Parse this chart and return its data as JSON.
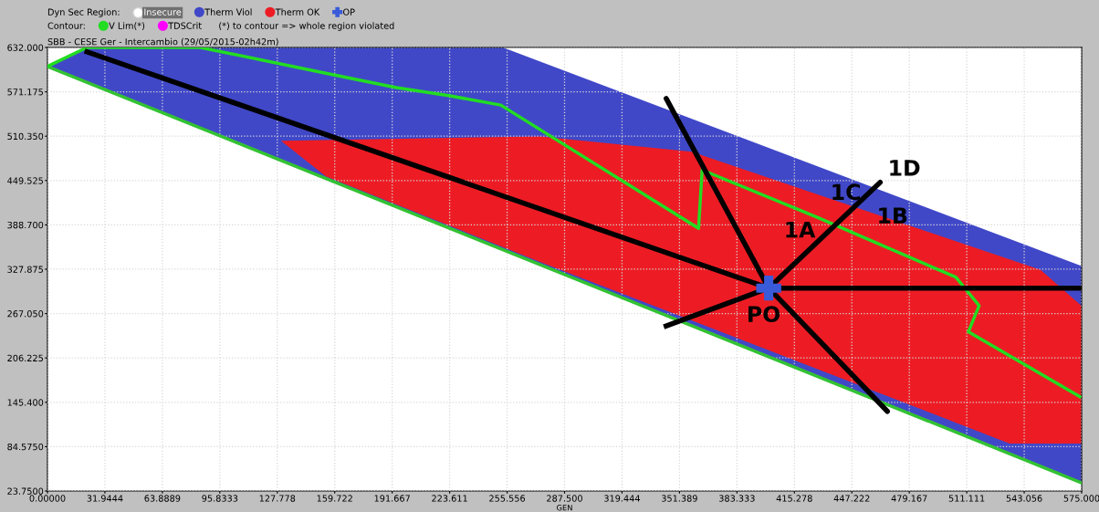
{
  "chart_data": {
    "type": "line",
    "title": "SBB - CESE Ger - Intercambio (29/05/2015-02h42m)",
    "xlabel": "GEN",
    "legend_title": "Dyn Sec Region:",
    "legend": "top left",
    "xlim": [
      0,
      575
    ],
    "ylim": [
      23.75,
      632
    ],
    "xticks": [
      {
        "value": 0,
        "label": "0.00000"
      },
      {
        "value": 31.9444,
        "label": "31.9444"
      },
      {
        "value": 63.8889,
        "label": "63.8889"
      },
      {
        "value": 95.8333,
        "label": "95.8333"
      },
      {
        "value": 127.778,
        "label": "127.778"
      },
      {
        "value": 159.722,
        "label": "159.722"
      },
      {
        "value": 191.667,
        "label": "191.667"
      },
      {
        "value": 223.611,
        "label": "223.611"
      },
      {
        "value": 255.556,
        "label": "255.556"
      },
      {
        "value": 287.5,
        "label": "287.500"
      },
      {
        "value": 319.444,
        "label": "319.444"
      },
      {
        "value": 351.389,
        "label": "351.389"
      },
      {
        "value": 383.333,
        "label": "383.333"
      },
      {
        "value": 415.278,
        "label": "415.278"
      },
      {
        "value": 447.222,
        "label": "447.222"
      },
      {
        "value": 479.167,
        "label": "479.167"
      },
      {
        "value": 511.111,
        "label": "511.111"
      },
      {
        "value": 543.056,
        "label": "543.056"
      },
      {
        "value": 575,
        "label": "575.000"
      }
    ],
    "yticks": [
      {
        "value": 23.75,
        "label": "23.7500"
      },
      {
        "value": 84.575,
        "label": "84.5750"
      },
      {
        "value": 145.4,
        "label": "145.400"
      },
      {
        "value": 206.225,
        "label": "206.225"
      },
      {
        "value": 267.05,
        "label": "267.050"
      },
      {
        "value": 327.875,
        "label": "327.875"
      },
      {
        "value": 388.7,
        "label": "388.700"
      },
      {
        "value": 449.525,
        "label": "449.525"
      },
      {
        "value": 510.35,
        "label": "510.350"
      },
      {
        "value": 571.175,
        "label": "571.175"
      },
      {
        "value": 632,
        "label": "632.000"
      }
    ],
    "grid": true,
    "series": [
      {
        "name": "Therm Viol",
        "type": "area",
        "color": "#4048c8",
        "x": [
          0,
          22,
          252,
          575,
          575
        ],
        "values": [
          606,
          632,
          632,
          331,
          35
        ]
      },
      {
        "name": "Therm OK",
        "type": "area",
        "color": "#ed1c24",
        "x": [
          131,
          274,
          358,
          552,
          575,
          575,
          535,
          274,
          155
        ],
        "values": [
          503,
          509,
          488,
          326,
          276,
          90,
          90,
          339,
          456
        ]
      },
      {
        "type": "line",
        "color": "#33c233",
        "x": [
          0,
          575
        ],
        "values": [
          606,
          35
        ]
      },
      {
        "name": "V Lim(*)",
        "type": "line",
        "color": "#22dd22",
        "x": [
          0,
          22,
          28,
          85,
          156,
          194,
          223,
          252,
          362,
          364,
          428,
          505,
          518,
          512,
          574
        ],
        "values": [
          606,
          632,
          632,
          632,
          596,
          577,
          566,
          553,
          384,
          464,
          399,
          317,
          278,
          242,
          153
        ]
      },
      {
        "name": "TDSCrit",
        "color": "#ff00ff"
      },
      {
        "color": "#000000",
        "x": [
          22,
          401,
          344,
          401,
          463,
          401,
          575,
          401,
          467,
          401,
          344
        ],
        "values": [
          626,
          302,
          562,
          302,
          447,
          302,
          302,
          302,
          133,
          302,
          250
        ]
      },
      {
        "name": "OP",
        "type": "scatter",
        "color": "#3a5bd9",
        "marker": "cross",
        "x": [
          401
        ],
        "values": [
          302
        ]
      }
    ],
    "annotations": [
      "Insecure",
      "Contour:",
      "(*) to contour => whole region violated",
      "1A",
      "1C",
      {
        "text": "1B",
        "x": 447,
        "y": 399
      },
      {
        "text": "1D",
        "x": 463,
        "y": 447
      },
      {
        "text": "PO",
        "x": 401,
        "y": 302
      }
    ]
  }
}
